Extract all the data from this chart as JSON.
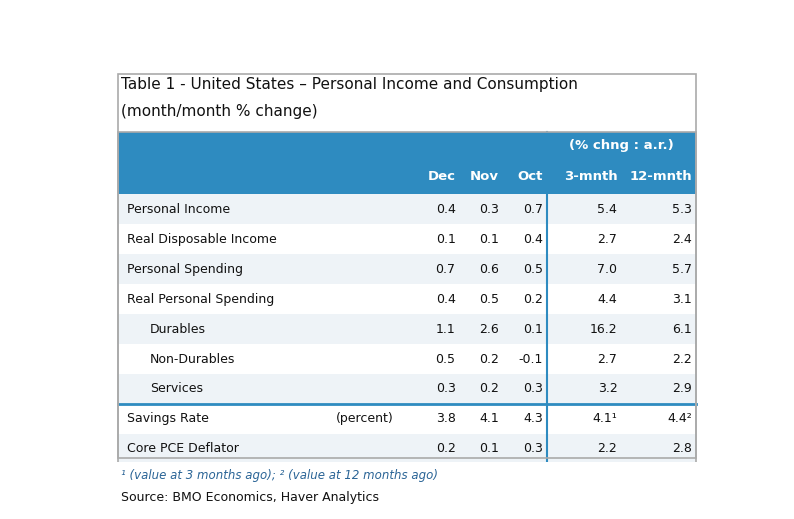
{
  "title_line1": "Table 1 - United States – Personal Income and Consumption",
  "title_line2": "(month/month % change)",
  "header_bg": "#2e8bc0",
  "header_text_color": "#ffffff",
  "subheader_text": "(% chng : a.r.)",
  "col_headers": [
    "Dec",
    "Nov",
    "Oct",
    "3-mnth",
    "12-mnth"
  ],
  "row_bg_odd": "#eef3f7",
  "row_bg_even": "#ffffff",
  "separator_color": "#2e8bc0",
  "rows": [
    {
      "label": "Personal Income",
      "indent": false,
      "dec": "0.4",
      "nov": "0.3",
      "oct": "0.7",
      "mnth3": "5.4",
      "mnth12": "5.3"
    },
    {
      "label": "Real Disposable Income",
      "indent": false,
      "dec": "0.1",
      "nov": "0.1",
      "oct": "0.4",
      "mnth3": "2.7",
      "mnth12": "2.4"
    },
    {
      "label": "Personal Spending",
      "indent": false,
      "dec": "0.7",
      "nov": "0.6",
      "oct": "0.5",
      "mnth3": "7.0",
      "mnth12": "5.7"
    },
    {
      "label": "Real Personal Spending",
      "indent": false,
      "dec": "0.4",
      "nov": "0.5",
      "oct": "0.2",
      "mnth3": "4.4",
      "mnth12": "3.1"
    },
    {
      "label": "Durables",
      "indent": true,
      "dec": "1.1",
      "nov": "2.6",
      "oct": "0.1",
      "mnth3": "16.2",
      "mnth12": "6.1"
    },
    {
      "label": "Non-Durables",
      "indent": true,
      "dec": "0.5",
      "nov": "0.2",
      "oct": "-0.1",
      "mnth3": "2.7",
      "mnth12": "2.2"
    },
    {
      "label": "Services",
      "indent": true,
      "dec": "0.3",
      "nov": "0.2",
      "oct": "0.3",
      "mnth3": "3.2",
      "mnth12": "2.9"
    }
  ],
  "special_rows": [
    {
      "label": "Savings Rate",
      "label2": "(percent)",
      "indent": false,
      "dec": "3.8",
      "nov": "4.1",
      "oct": "4.3",
      "mnth3": "4.1¹",
      "mnth12": "4.4²"
    },
    {
      "label": "Core PCE Deflator",
      "label2": null,
      "indent": false,
      "dec": "0.2",
      "nov": "0.1",
      "oct": "0.3",
      "mnth3": "2.2",
      "mnth12": "2.8"
    }
  ],
  "footnote": "¹ (value at 3 months ago); ² (value at 12 months ago)",
  "source": "Source: BMO Economics, Haver Analytics",
  "outer_border_color": "#aaaaaa",
  "fig_bg": "#ffffff"
}
